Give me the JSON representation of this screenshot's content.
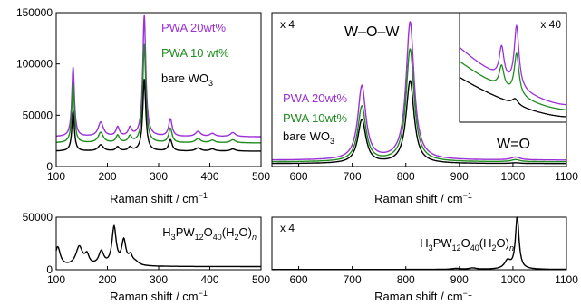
{
  "figure": {
    "xlabel": "Raman shift / cm",
    "xlabel_sup": "−1"
  },
  "colors": {
    "purple": "#9b30d6",
    "green": "#1e8c1e",
    "black": "#000000"
  },
  "chart_data": [
    {
      "id": "top-left",
      "type": "line",
      "xlim": [
        100,
        500
      ],
      "ylim": [
        0,
        150000
      ],
      "xticks": [
        100,
        200,
        300,
        400,
        500
      ],
      "yticks": [
        0,
        50000,
        100000,
        150000
      ],
      "ytick_labels": [
        "0",
        "50000",
        "100000",
        "150000"
      ],
      "legend": [
        "PWA 20wt%",
        "PWA 10 wt%",
        "bare WO3"
      ],
      "series": [
        {
          "name": "PWA 20wt%",
          "color": "#9b30d6",
          "baseline": 29000,
          "peaks": [
            [
              133,
              68000,
              3
            ],
            [
              187,
              14000,
              6
            ],
            [
              220,
              9000,
              4
            ],
            [
              244,
              8000,
              4
            ],
            [
              272,
              118000,
              3.5
            ],
            [
              323,
              17000,
              4
            ],
            [
              377,
              5000,
              6
            ],
            [
              405,
              3000,
              6
            ],
            [
              445,
              4000,
              6
            ]
          ]
        },
        {
          "name": "PWA 10 wt%",
          "color": "#1e8c1e",
          "baseline": 23000,
          "peaks": [
            [
              133,
              58000,
              3
            ],
            [
              187,
              10000,
              6
            ],
            [
              220,
              7000,
              4
            ],
            [
              244,
              6000,
              4
            ],
            [
              272,
              96000,
              3.5
            ],
            [
              323,
              14000,
              4
            ],
            [
              377,
              4000,
              6
            ],
            [
              405,
              2500,
              6
            ],
            [
              445,
              3000,
              6
            ]
          ]
        },
        {
          "name": "bare WO3",
          "color": "#000000",
          "baseline": 15000,
          "peaks": [
            [
              133,
              38000,
              3
            ],
            [
              187,
              6000,
              6
            ],
            [
              220,
              4000,
              4
            ],
            [
              244,
              3500,
              4
            ],
            [
              272,
              70000,
              3.5
            ],
            [
              323,
              11000,
              4
            ],
            [
              377,
              3000,
              6
            ],
            [
              405,
              2000,
              6
            ],
            [
              445,
              2000,
              6
            ]
          ]
        }
      ]
    },
    {
      "id": "top-right",
      "type": "line",
      "xlim": [
        550,
        1100
      ],
      "xticks": [
        600,
        700,
        800,
        900,
        1000,
        1100
      ],
      "multiplier": "x 4",
      "annotations": [
        "W–O–W",
        "W=O"
      ],
      "legend": [
        "PWA 20wt%",
        "PWA 10wt%",
        "bare WO3"
      ],
      "series": [
        {
          "name": "PWA 20wt%",
          "color": "#9b30d6",
          "baseline": 5500,
          "peaks": [
            [
              718,
              64000,
              9
            ],
            [
              808,
              120000,
              9
            ],
            [
              1005,
              2500,
              10
            ]
          ]
        },
        {
          "name": "PWA 10wt%",
          "color": "#1e8c1e",
          "baseline": 4000,
          "peaks": [
            [
              718,
              48000,
              9
            ],
            [
              808,
              98000,
              9
            ],
            [
              1005,
              1800,
              10
            ]
          ]
        },
        {
          "name": "bare WO3",
          "color": "#000000",
          "baseline": 2500,
          "peaks": [
            [
              718,
              38000,
              9
            ],
            [
              808,
              72000,
              9
            ],
            [
              1005,
              600,
              10
            ]
          ]
        }
      ],
      "inset": {
        "multiplier": "x 40",
        "xlim": [
          930,
          1080
        ],
        "series": [
          {
            "name": "PWA 20wt%",
            "color": "#9b30d6",
            "start": 0.7,
            "end": 0.12,
            "peaks": [
              [
                989,
                0.32,
                4
              ],
              [
                1010,
                0.62,
                4
              ]
            ]
          },
          {
            "name": "PWA 10wt%",
            "color": "#1e8c1e",
            "start": 0.56,
            "end": 0.07,
            "peaks": [
              [
                989,
                0.22,
                4
              ],
              [
                1010,
                0.42,
                4
              ]
            ]
          },
          {
            "name": "bare WO3",
            "color": "#000000",
            "start": 0.4,
            "end": 0.0,
            "peaks": [
              [
                1008,
                0.06,
                5
              ]
            ]
          }
        ]
      }
    },
    {
      "id": "bottom-left",
      "type": "line",
      "xlim": [
        100,
        500
      ],
      "ylim": [
        0,
        50000
      ],
      "xticks": [
        100,
        200,
        300,
        400,
        500
      ],
      "yticks": [
        0,
        50000
      ],
      "ytick_labels": [
        "0",
        "50000"
      ],
      "series": [
        {
          "name": "H3PW12O40(H2O)n",
          "color": "#000000",
          "baseline": 3000,
          "peaks": [
            [
              103,
              18000,
              6
            ],
            [
              145,
              18000,
              8
            ],
            [
              160,
              9000,
              5
            ],
            [
              188,
              13000,
              6
            ],
            [
              213,
              36000,
              5
            ],
            [
              232,
              23000,
              5
            ],
            [
              245,
              8000,
              5
            ],
            [
              255,
              3000,
              8
            ]
          ]
        }
      ]
    },
    {
      "id": "bottom-right",
      "type": "line",
      "xlim": [
        550,
        1100
      ],
      "xticks": [
        600,
        700,
        800,
        900,
        1000,
        1100
      ],
      "multiplier": "x 4",
      "series": [
        {
          "name": "H3PW12O40(H2O)n",
          "color": "#000000",
          "baseline": 300,
          "peaks": [
            [
              894,
              1000,
              10
            ],
            [
              925,
              1500,
              8
            ],
            [
              990,
              9000,
              7
            ],
            [
              1008,
              58000,
              4
            ]
          ]
        }
      ]
    }
  ]
}
